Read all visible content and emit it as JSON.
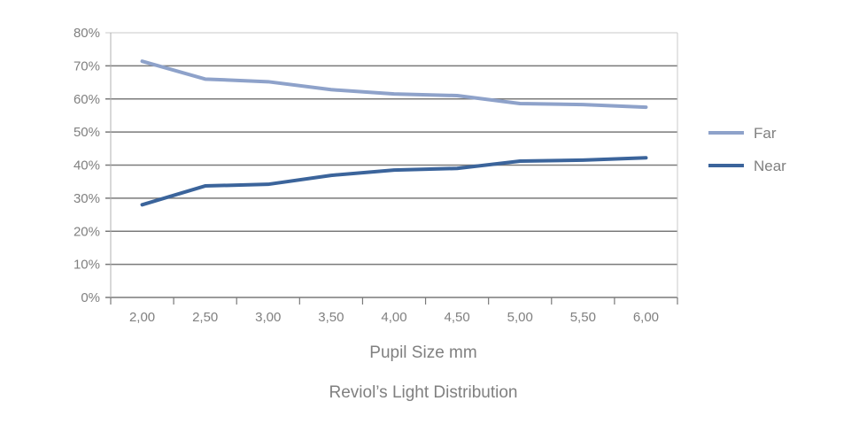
{
  "chart_data": {
    "type": "line",
    "title": "Reviol’s Light Distribution",
    "xlabel": "Pupil Size mm",
    "ylabel": "",
    "categories": [
      "2,00",
      "2,50",
      "3,00",
      "3,50",
      "4,00",
      "4,50",
      "5,00",
      "5,50",
      "6,00"
    ],
    "y_ticks": [
      "0%",
      "10%",
      "20%",
      "30%",
      "40%",
      "50%",
      "60%",
      "70%",
      "80%"
    ],
    "ylim": [
      0,
      80
    ],
    "grid": true,
    "legend_position": "right",
    "series": [
      {
        "name": "Far",
        "color": "#8ea2ca",
        "values": [
          71.4,
          66.0,
          65.2,
          62.8,
          61.5,
          61.0,
          58.6,
          58.3,
          57.5
        ]
      },
      {
        "name": "Near",
        "color": "#3b649b",
        "values": [
          28.0,
          33.7,
          34.2,
          36.9,
          38.5,
          39.0,
          41.2,
          41.5,
          42.2
        ]
      }
    ]
  }
}
